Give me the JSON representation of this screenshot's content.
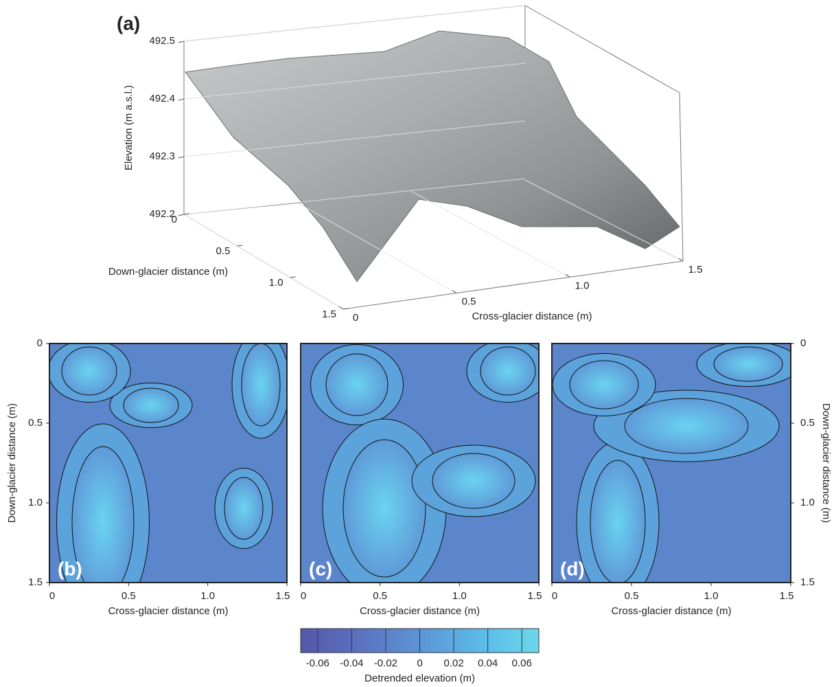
{
  "chart_data": [
    {
      "type": "surface3d",
      "panel_label": "(a)",
      "zlabel": "Elevation (m a.s.l.)",
      "xlabel": "Cross-glacier distance (m)",
      "ylabel": "Down-glacier distance (m)",
      "xlim": [
        0,
        1.5
      ],
      "xticks": [
        0,
        0.5,
        {
          "value": 1,
          "label": "1.0"
        },
        1.5
      ],
      "ylim": [
        0,
        1.5
      ],
      "yticks": [
        0,
        0.5,
        {
          "value": 1,
          "label": "1.0"
        },
        1.5
      ],
      "zlim": [
        492.2,
        492.5
      ],
      "zticks": [
        492.2,
        492.3,
        492.4,
        492.5
      ],
      "grid": true
    },
    {
      "type": "contour",
      "panel_label": "(b)",
      "xlabel": "Cross-glacier distance (m)",
      "ylabel": "Down-glacier distance (m)",
      "yaxis_side": "left",
      "xlim": [
        0,
        1.5
      ],
      "xticks": [
        0,
        0.5,
        {
          "value": 1,
          "label": "1.0"
        },
        1.5
      ],
      "ylim": [
        0,
        1.5
      ],
      "yticks": [
        0,
        0.5,
        {
          "value": 1,
          "label": "1.0"
        },
        1.5
      ]
    },
    {
      "type": "contour",
      "panel_label": "(c)",
      "xlabel": "Cross-glacier distance (m)",
      "xlim": [
        0,
        1.5
      ],
      "xticks": [
        0,
        0.5,
        {
          "value": 1,
          "label": "1.0"
        },
        1.5
      ],
      "ylim": [
        0,
        1.5
      ]
    },
    {
      "type": "contour",
      "panel_label": "(d)",
      "xlabel": "Cross-glacier distance (m)",
      "ylabel": "Down-glacier distance (m)",
      "yaxis_side": "right",
      "xlim": [
        0,
        1.5
      ],
      "xticks": [
        0,
        0.5,
        {
          "value": 1,
          "label": "1.0"
        },
        1.5
      ],
      "ylim": [
        0,
        1.5
      ],
      "yticks": [
        0,
        0.5,
        {
          "value": 1,
          "label": "1.0"
        },
        1.5
      ]
    },
    {
      "type": "colorbar",
      "label": "Detrended elevation (m)",
      "clim": [
        -0.07,
        0.07
      ],
      "ticks": [
        -0.06,
        -0.04,
        -0.02,
        0,
        0.02,
        0.04,
        0.06
      ],
      "colors": [
        "#5558a8",
        "#5a6cbc",
        "#5c86cc",
        "#5ca3dc",
        "#5cc0ea",
        "#6dd6ea"
      ]
    }
  ]
}
